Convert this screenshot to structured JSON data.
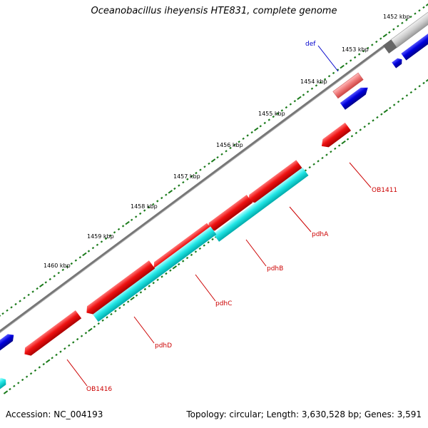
{
  "title": "Oceanobacillus iheyensis HTE831, complete genome",
  "accession": "Accession: NC_004193",
  "summary": "Topology: circular; Length: 3,630,528 bp; Genes: 3,591",
  "kbp_labels": [
    "1452 kbp",
    "1453 kbp",
    "1454 kbp",
    "1455 kbp",
    "1456 kbp",
    "1457 kbp",
    "1458 kbp",
    "1459 kbp",
    "1460 kbp"
  ],
  "genes": [
    {
      "name": "def",
      "color": "#0000cc"
    },
    {
      "name": "OB1411",
      "color": "#cc0000"
    },
    {
      "name": "pdhA",
      "color": "#cc0000"
    },
    {
      "name": "pdhB",
      "color": "#cc0000"
    },
    {
      "name": "pdhC",
      "color": "#cc0000"
    },
    {
      "name": "pdhD",
      "color": "#cc0000"
    },
    {
      "name": "OB1416",
      "color": "#cc0000"
    }
  ],
  "colors": {
    "backbone": "#7a7a7a",
    "tick": "#1a7a1a",
    "gene_red": "#ee1111",
    "gene_cyan": "#22e6e6",
    "gene_blue": "#0000dd",
    "gene_pink": "#ee7777",
    "gene_gray": "#888888"
  }
}
